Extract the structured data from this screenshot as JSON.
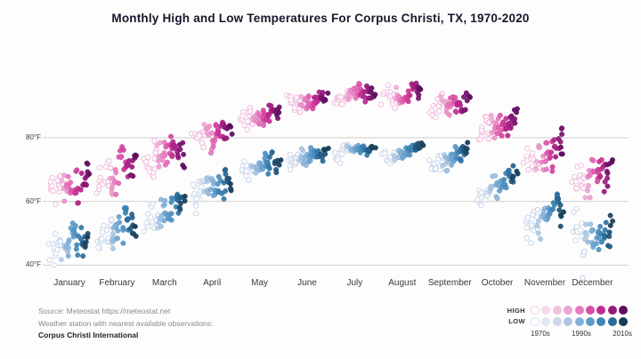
{
  "title": "Monthly High and Low Temperatures For Corpus Christi, TX, 1970-2020",
  "source": {
    "line1": "Source: Meteostat https://meteostat.net",
    "line2": "Weather station with nearest available observations:",
    "line3": "Corpus Christi International"
  },
  "legend": {
    "high_label": "HIGH",
    "low_label": "LOW",
    "decades": [
      "1970s",
      "1990s",
      "2010s"
    ]
  },
  "colors": {
    "gridline": "#cfcfcf",
    "title_text": "#17172b",
    "axis_text": "#3c3c3c",
    "muted_text": "#8a8a8a"
  },
  "chart_data": {
    "type": "scatter",
    "title": "Monthly High and Low Temperatures For Corpus Christi, TX, 1970-2020",
    "x_categories": [
      "January",
      "February",
      "March",
      "April",
      "May",
      "June",
      "July",
      "August",
      "September",
      "October",
      "November",
      "December"
    ],
    "y_unit": "°F",
    "y_ticks": [
      {
        "value": 80,
        "label": "80°F"
      },
      {
        "value": 60,
        "label": "60°F"
      },
      {
        "value": 40,
        "label": "40°F"
      }
    ],
    "ylim": [
      34,
      101
    ],
    "year_range": [
      1970,
      2020
    ],
    "points_per_cluster": 51,
    "color_encoding": "point color encodes year: light/hollow = 1970s, dark = 2010s",
    "series": [
      {
        "name": "HIGH",
        "palette": [
          "#ffffff",
          "#f6d8e9",
          "#f2c0de",
          "#eda3d1",
          "#e67cbe",
          "#d94fa5",
          "#c22b91",
          "#96197b",
          "#5c0e60"
        ],
        "monthly": [
          {
            "month": "January",
            "mean_1970": 64,
            "mean_2020": 68,
            "sd": 3.2,
            "min": 58,
            "max": 75
          },
          {
            "month": "February",
            "mean_1970": 67.5,
            "mean_2020": 71,
            "sd": 3.3,
            "min": 59,
            "max": 78
          },
          {
            "month": "March",
            "mean_1970": 72,
            "mean_2020": 76,
            "sd": 2.9,
            "min": 63,
            "max": 81
          },
          {
            "month": "April",
            "mean_1970": 79,
            "mean_2020": 82.5,
            "sd": 2.3,
            "min": 74,
            "max": 87
          },
          {
            "month": "May",
            "mean_1970": 85,
            "mean_2020": 88,
            "sd": 1.9,
            "min": 81,
            "max": 91.5
          },
          {
            "month": "June",
            "mean_1970": 90,
            "mean_2020": 93,
            "sd": 1.7,
            "min": 86.5,
            "max": 96.5
          },
          {
            "month": "July",
            "mean_1970": 92,
            "mean_2020": 94.5,
            "sd": 1.5,
            "min": 89,
            "max": 97
          },
          {
            "month": "August",
            "mean_1970": 92.5,
            "mean_2020": 95.5,
            "sd": 1.7,
            "min": 88.5,
            "max": 98.5
          },
          {
            "month": "September",
            "mean_1970": 88,
            "mean_2020": 91.5,
            "sd": 2.0,
            "min": 84,
            "max": 96
          },
          {
            "month": "October",
            "mean_1970": 82,
            "mean_2020": 85.5,
            "sd": 2.2,
            "min": 77.5,
            "max": 89.5
          },
          {
            "month": "November",
            "mean_1970": 73,
            "mean_2020": 77,
            "sd": 2.8,
            "min": 68,
            "max": 83
          },
          {
            "month": "December",
            "mean_1970": 66.5,
            "mean_2020": 70.5,
            "sd": 3.0,
            "min": 60,
            "max": 77
          }
        ]
      },
      {
        "name": "LOW",
        "palette": [
          "#ffffff",
          "#e2e7f2",
          "#cdd8eb",
          "#adc6e3",
          "#84b1d9",
          "#5e9cc8",
          "#3f86b6",
          "#296a9b",
          "#173c55"
        ],
        "monthly": [
          {
            "month": "January",
            "mean_1970": 44.5,
            "mean_2020": 50.5,
            "sd": 3.0,
            "min": 39,
            "max": 56
          },
          {
            "month": "February",
            "mean_1970": 47.5,
            "mean_2020": 52.5,
            "sd": 3.1,
            "min": 42,
            "max": 58
          },
          {
            "month": "March",
            "mean_1970": 53.5,
            "mean_2020": 59.5,
            "sd": 2.8,
            "min": 48,
            "max": 63.5
          },
          {
            "month": "April",
            "mean_1970": 61,
            "mean_2020": 66,
            "sd": 2.3,
            "min": 55,
            "max": 70
          },
          {
            "month": "May",
            "mean_1970": 68.5,
            "mean_2020": 72,
            "sd": 1.8,
            "min": 64.5,
            "max": 75.5
          },
          {
            "month": "June",
            "mean_1970": 73,
            "mean_2020": 76,
            "sd": 1.5,
            "min": 70,
            "max": 79
          },
          {
            "month": "July",
            "mean_1970": 74.5,
            "mean_2020": 77,
            "sd": 1.3,
            "min": 72,
            "max": 79.5
          },
          {
            "month": "August",
            "mean_1970": 74.5,
            "mean_2020": 77,
            "sd": 1.3,
            "min": 72,
            "max": 79.5
          },
          {
            "month": "September",
            "mean_1970": 71.5,
            "mean_2020": 75,
            "sd": 1.8,
            "min": 67,
            "max": 78.5
          },
          {
            "month": "October",
            "mean_1970": 62.5,
            "mean_2020": 67.5,
            "sd": 2.6,
            "min": 55.5,
            "max": 72.5
          },
          {
            "month": "November",
            "mean_1970": 52,
            "mean_2020": 58,
            "sd": 3.0,
            "min": 45,
            "max": 63
          },
          {
            "month": "December",
            "mean_1970": 46,
            "mean_2020": 52,
            "sd": 3.2,
            "min": 39.5,
            "max": 58
          }
        ]
      }
    ],
    "outliers": [
      {
        "series": "LOW",
        "month": "December",
        "year": 1983,
        "value": 36
      }
    ]
  }
}
